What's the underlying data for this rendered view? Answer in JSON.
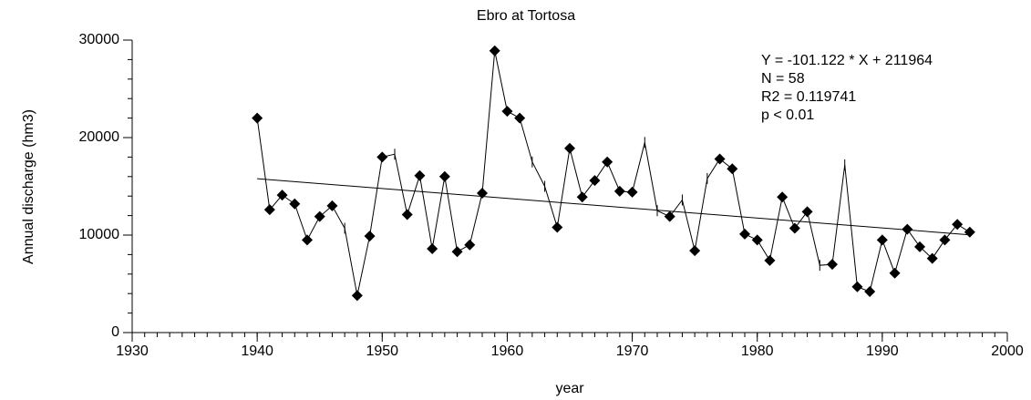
{
  "chart_data": {
    "type": "line",
    "title": "Ebro at Tortosa",
    "xlabel": "year",
    "ylabel": "Annual discharge (hm3)",
    "annotations": [
      "Y = -101.122 * X + 211964",
      "N = 58",
      "R2 = 0.119741",
      "p < 0.01"
    ],
    "x": [
      1940,
      1941,
      1942,
      1943,
      1944,
      1945,
      1946,
      1947,
      1948,
      1949,
      1950,
      1951,
      1952,
      1953,
      1954,
      1955,
      1956,
      1957,
      1958,
      1959,
      1960,
      1961,
      1962,
      1963,
      1964,
      1965,
      1966,
      1967,
      1968,
      1969,
      1970,
      1971,
      1972,
      1973,
      1974,
      1975,
      1976,
      1977,
      1978,
      1979,
      1980,
      1981,
      1982,
      1983,
      1984,
      1985,
      1986,
      1987,
      1988,
      1989,
      1990,
      1991,
      1992,
      1993,
      1994,
      1995,
      1996,
      1997
    ],
    "values": [
      22000,
      12600,
      14100,
      13200,
      9500,
      11900,
      13000,
      10700,
      3800,
      9900,
      18000,
      18300,
      12100,
      16100,
      8600,
      16000,
      8300,
      9000,
      14300,
      28900,
      22700,
      22000,
      17500,
      15000,
      10800,
      18900,
      13900,
      15600,
      17500,
      14500,
      14400,
      19500,
      12500,
      11900,
      13600,
      8400,
      15800,
      17800,
      16800,
      10100,
      9500,
      7400,
      13900,
      10700,
      12400,
      6900,
      7000,
      17200,
      4700,
      4200,
      9500,
      6100,
      10600,
      8800,
      7600,
      9500,
      11100,
      10300
    ],
    "markers": [
      "diamond",
      "diamond",
      "diamond",
      "diamond",
      "diamond",
      "diamond",
      "diamond",
      "tick",
      "diamond",
      "diamond",
      "diamond",
      "tick",
      "diamond",
      "diamond",
      "diamond",
      "diamond",
      "diamond",
      "diamond",
      "diamond",
      "diamond",
      "diamond",
      "diamond",
      "tick",
      "tick",
      "diamond",
      "diamond",
      "diamond",
      "diamond",
      "diamond",
      "diamond",
      "diamond",
      "tick",
      "tick",
      "diamond",
      "tick",
      "diamond",
      "tick",
      "diamond",
      "diamond",
      "diamond",
      "diamond",
      "diamond",
      "diamond",
      "diamond",
      "diamond",
      "tick",
      "diamond",
      "tick",
      "diamond",
      "diamond",
      "diamond",
      "diamond",
      "diamond",
      "diamond",
      "diamond",
      "diamond",
      "diamond",
      "diamond"
    ],
    "color": "#000000",
    "trend": {
      "slope": -101.122,
      "intercept": 211964
    },
    "xlim": [
      1930,
      2000
    ],
    "xticks": [
      1930,
      1940,
      1950,
      1960,
      1970,
      1980,
      1990,
      2000
    ],
    "x_minor_step": 1,
    "ylim": [
      0,
      30000
    ],
    "yticks": [
      0,
      10000,
      20000,
      30000
    ],
    "y_minor_step": 2000,
    "grid": false
  }
}
